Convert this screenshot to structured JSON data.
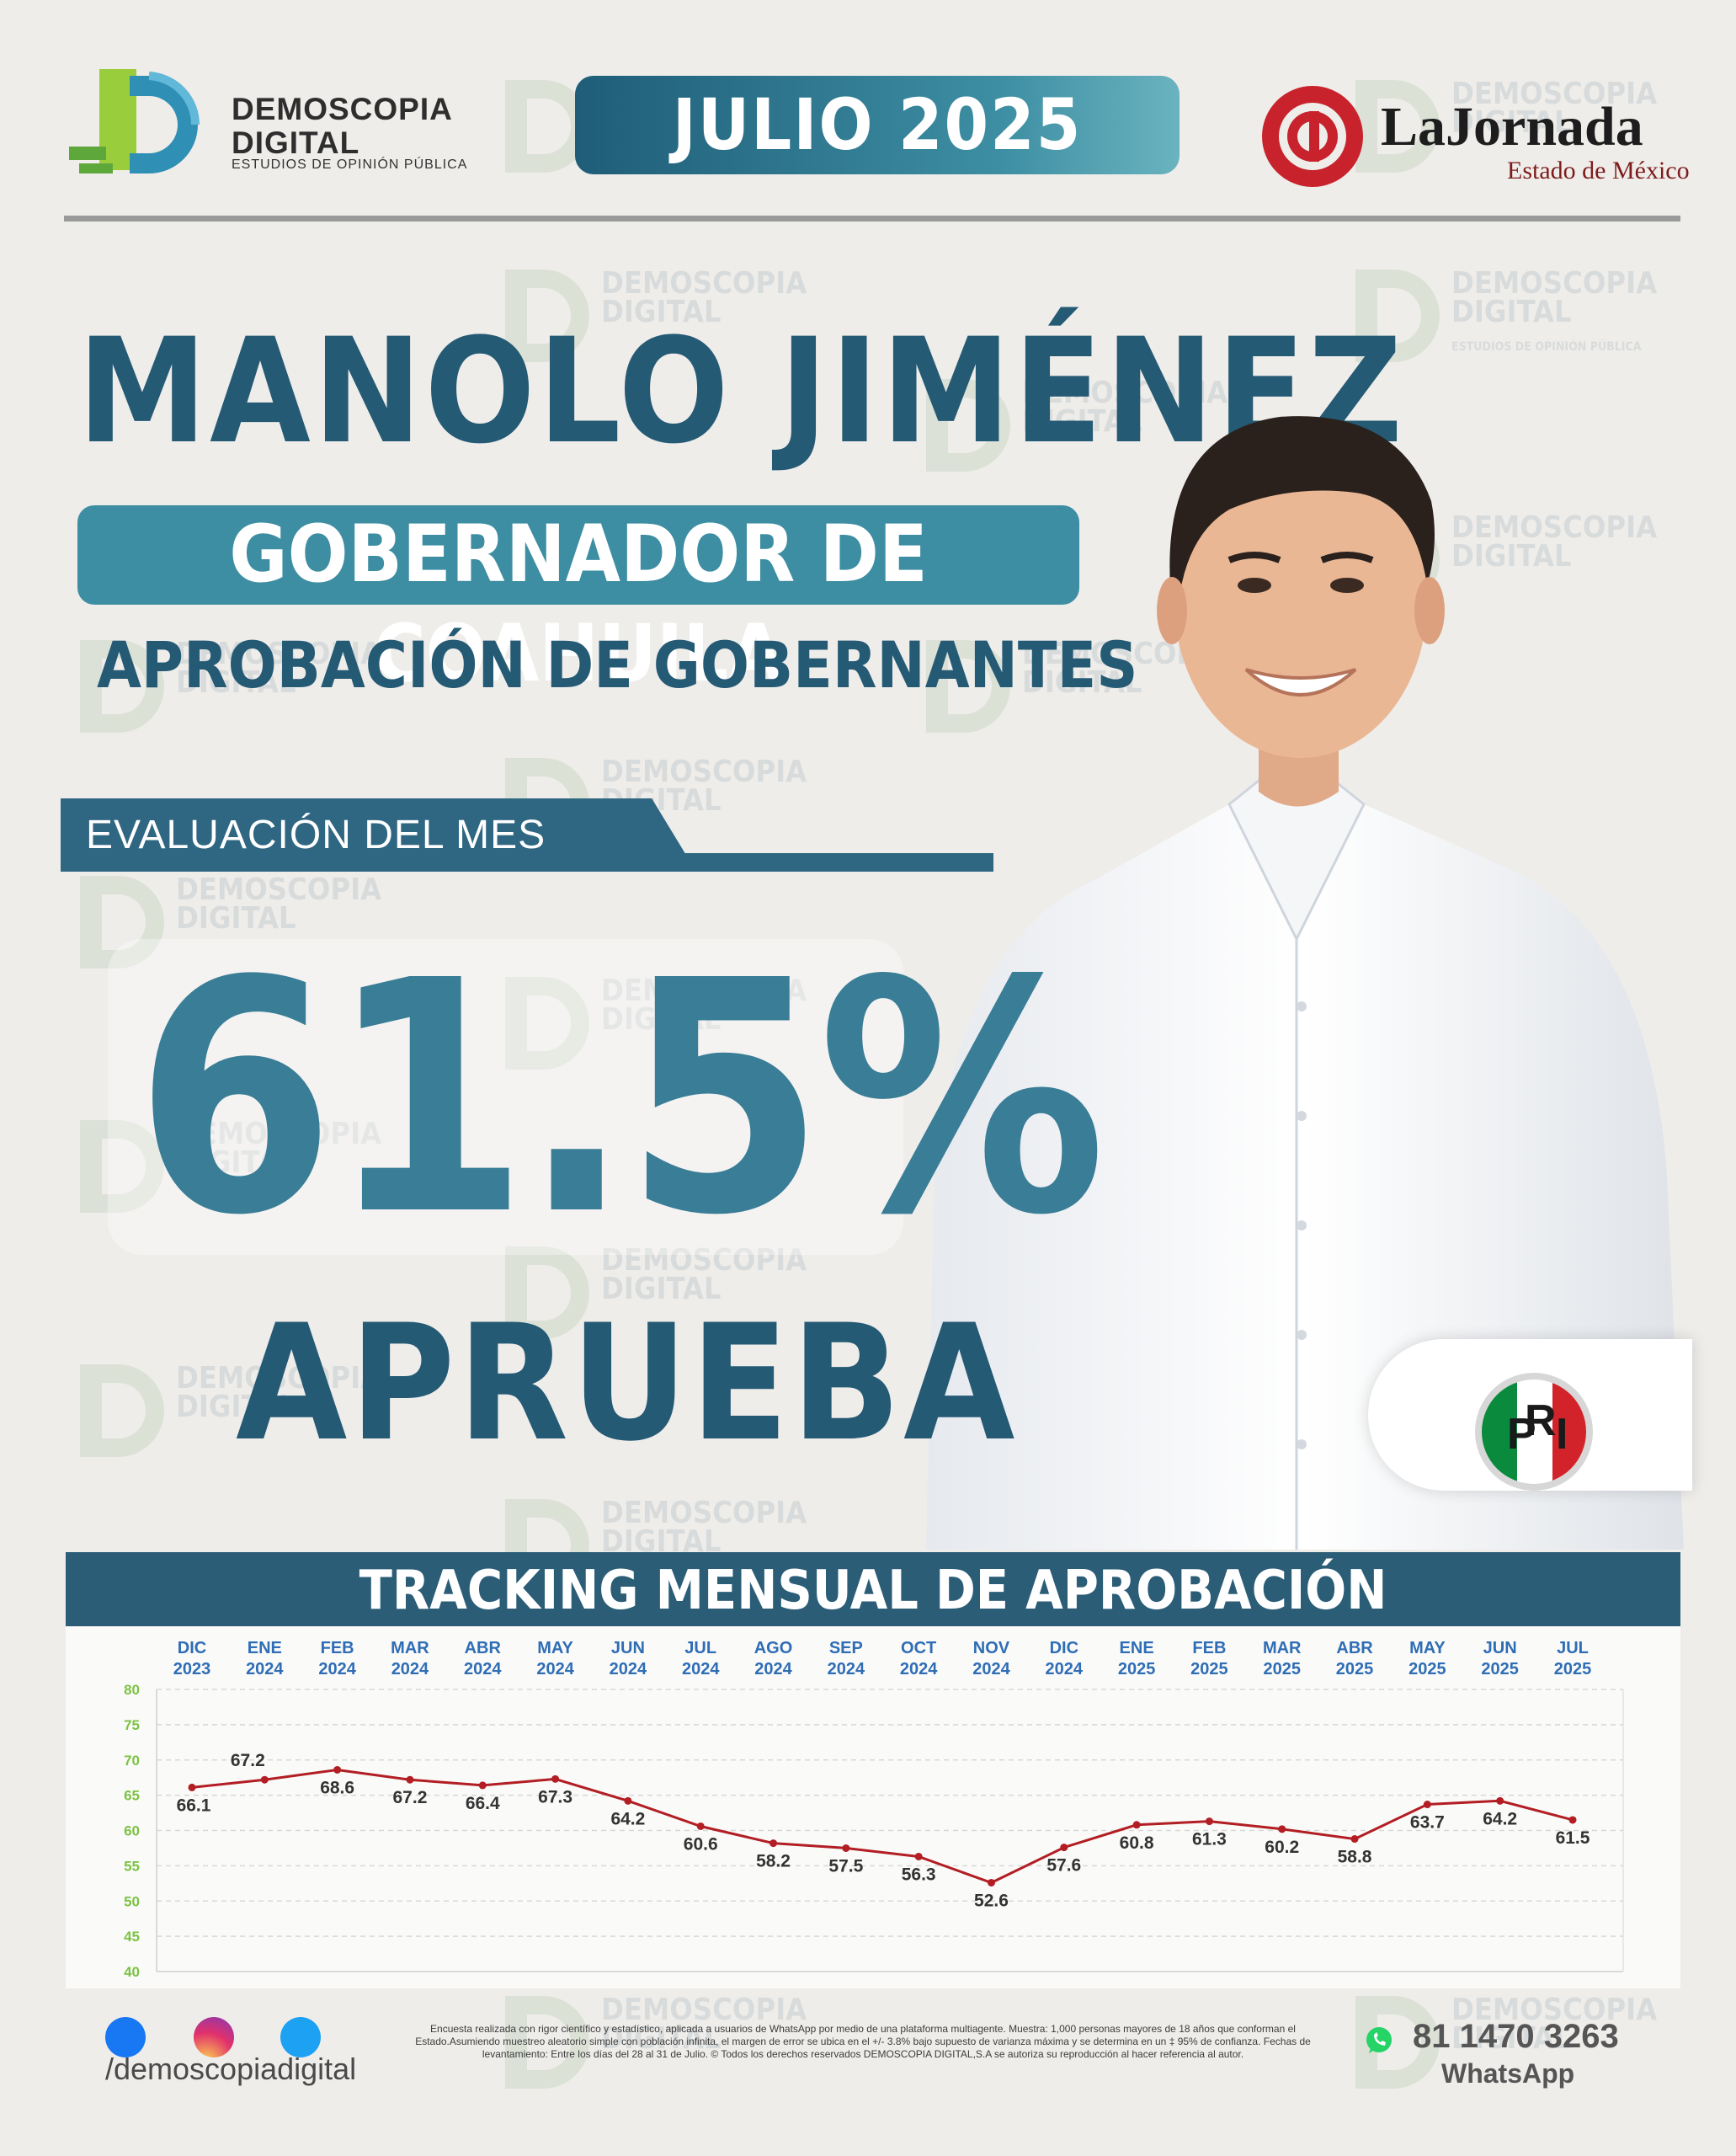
{
  "header": {
    "brand_name_line1": "DEMOSCOPIA",
    "brand_name_line2": "DIGITAL",
    "brand_tagline": "ESTUDIOS DE OPINIÓN PÚBLICA",
    "month": "JULIO 2025",
    "partner_name": "LaJornada",
    "partner_region": "Estado de México"
  },
  "title": {
    "name": "MANOLO JIMÉNEZ",
    "role": "GOBERNADOR DE COAHUILA",
    "subtitle": "APROBACIÓN DE GOBERNANTES"
  },
  "evaluation": {
    "label": "EVALUACIÓN DEL MES",
    "value": "61.5%",
    "verdict": "APRUEBA"
  },
  "party": {
    "logo_text": "PRI",
    "icon": "pri-logo-icon"
  },
  "chart_data": {
    "type": "line",
    "title": "TRACKING MENSUAL DE APROBACIÓN",
    "categories": [
      [
        "DIC",
        "2023"
      ],
      [
        "ENE",
        "2024"
      ],
      [
        "FEB",
        "2024"
      ],
      [
        "MAR",
        "2024"
      ],
      [
        "ABR",
        "2024"
      ],
      [
        "MAY",
        "2024"
      ],
      [
        "JUN",
        "2024"
      ],
      [
        "JUL",
        "2024"
      ],
      [
        "AGO",
        "2024"
      ],
      [
        "SEP",
        "2024"
      ],
      [
        "OCT",
        "2024"
      ],
      [
        "NOV",
        "2024"
      ],
      [
        "DIC",
        "2024"
      ],
      [
        "ENE",
        "2025"
      ],
      [
        "FEB",
        "2025"
      ],
      [
        "MAR",
        "2025"
      ],
      [
        "ABR",
        "2025"
      ],
      [
        "MAY",
        "2025"
      ],
      [
        "JUN",
        "2025"
      ],
      [
        "JUL",
        "2025"
      ]
    ],
    "series": [
      {
        "values": [
          66.1,
          67.2,
          68.6,
          67.2,
          66.4,
          67.3,
          64.2,
          60.6,
          58.2,
          57.5,
          56.3,
          52.6,
          57.6,
          60.8,
          61.3,
          60.2,
          58.8,
          63.7,
          64.2,
          61.5
        ]
      }
    ],
    "value_labels": [
      "66.1",
      "67.2",
      "68.6",
      "67.2",
      "66.4",
      "67.3",
      "64.2",
      "60.6",
      "58.2",
      "57.5",
      "56.3",
      "52.6",
      "57.6",
      "60.8",
      "61.3",
      "60.2",
      "58.8",
      "63.7",
      "64.2",
      "61.5"
    ],
    "ylim": [
      40,
      80
    ],
    "yticks": [
      "80",
      "75",
      "70",
      "65",
      "60",
      "55",
      "50",
      "45",
      "40"
    ],
    "grid": true,
    "colors": {
      "line": "#b21e23",
      "categories": "#2f6db5",
      "yticks": "#7cc243",
      "labels": "#333333"
    }
  },
  "footer": {
    "handle": "/demoscopiadigital",
    "social_icons": [
      "facebook-icon",
      "instagram-icon",
      "twitter-icon"
    ],
    "disclaimer": "Encuesta realizada con rigor científico y estadístico, aplicada a usuarios de WhatsApp por medio de una plataforma multiagente. Muestra: 1,000 personas mayores de 18 años que conforman el Estado.Asumiendo muestreo aleatorio simple con población infinita, el margen de error se ubica en el +/- 3.8% bajo supuesto de varianza máxima y se determina en un ‡ 95% de confianza. Fechas de levantamiento: Entre los días del 28 al 31 de Julio. © Todos los derechos reservados DEMOSCOPIA DIGITAL,S.A se autoriza su reproducción al hacer referencia al autor.",
    "phone": "81 1470 3263",
    "phone_label": "WhatsApp"
  },
  "colors": {
    "primary": "#255a75",
    "accent": "#3d8ea3",
    "background": "#efedea"
  }
}
